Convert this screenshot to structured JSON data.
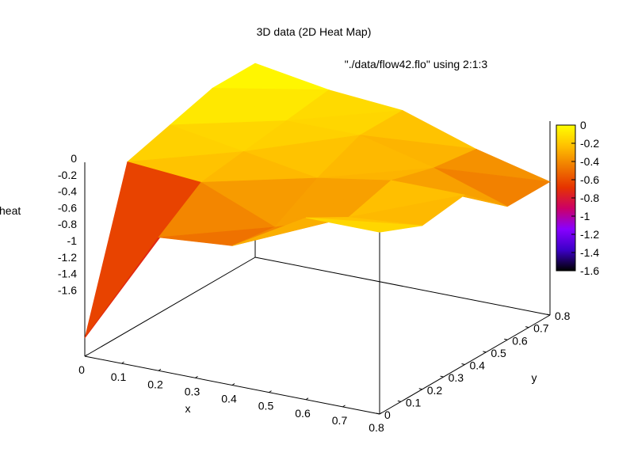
{
  "chart_data": {
    "type": "surface",
    "title": "3D data (2D Heat Map)",
    "legend": "\"./data/flow42.flo\" using 2:1:3",
    "xlabel": "x",
    "ylabel": "y",
    "zlabel": "heat",
    "x_ticks": [
      "0",
      "0.1",
      "0.2",
      "0.3",
      "0.4",
      "0.5",
      "0.6",
      "0.7",
      "0.8"
    ],
    "y_ticks": [
      "0",
      "0.1",
      "0.2",
      "0.3",
      "0.4",
      "0.5",
      "0.6",
      "0.7",
      "0.8"
    ],
    "z_ticks": [
      "0",
      "-0.2",
      "-0.4",
      "-0.6",
      "-0.8",
      "-1",
      "-1.2",
      "-1.4",
      "-1.6"
    ],
    "cb_ticks": [
      "0",
      "-0.2",
      "-0.4",
      "-0.6",
      "-0.8",
      "-1",
      "-1.2",
      "-1.4",
      "-1.6"
    ],
    "xlim": [
      0,
      0.8
    ],
    "ylim": [
      0,
      0.8
    ],
    "zlim": [
      -1.6,
      0
    ],
    "x": [
      0,
      0.2,
      0.4,
      0.6,
      0.8
    ],
    "y": [
      0,
      0.2,
      0.4,
      0.6,
      0.8
    ],
    "z": [
      [
        -1.45,
        -0.5,
        -0.45,
        -0.1,
        -0.1
      ],
      [
        -0.2,
        -0.25,
        -0.5,
        -0.3,
        -0.25
      ],
      [
        -0.1,
        -0.2,
        -0.3,
        -0.2,
        -0.2
      ],
      [
        0,
        -0.15,
        -0.15,
        -0.3,
        -0.5
      ],
      [
        0,
        -0.1,
        -0.15,
        -0.35,
        -0.5
      ]
    ],
    "palette": [
      "#000000",
      "#3c00c8",
      "#8800ff",
      "#cc0066",
      "#e63300",
      "#f07a00",
      "#ffc000",
      "#ffff00"
    ]
  }
}
